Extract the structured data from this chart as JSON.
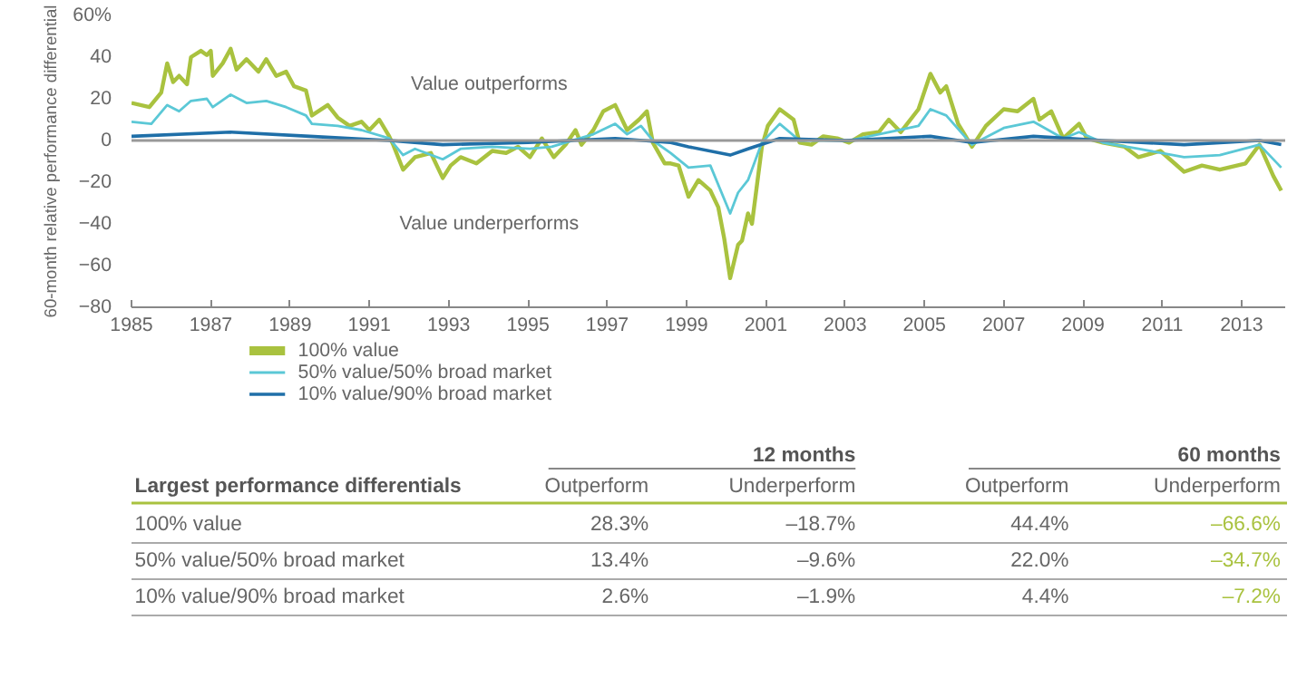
{
  "chart_data": [
    {
      "type": "line",
      "ylabel": "60-month relative performance differential",
      "xlim": [
        1985,
        2014.1
      ],
      "xticks": [
        1985,
        1987,
        1989,
        1991,
        1993,
        1995,
        1997,
        1999,
        2001,
        2003,
        2005,
        2007,
        2009,
        2011,
        2013
      ],
      "ylim": [
        -80,
        60
      ],
      "yticks": [
        -80,
        -60,
        -40,
        -20,
        0,
        20,
        40,
        {
          "value": 60,
          "label": "60%"
        }
      ],
      "grid": false,
      "legend": "bottom left",
      "ref_lines": [
        {
          "axis": "y",
          "value": 0,
          "color": "#999999"
        }
      ],
      "annotations": [
        "Value outperforms",
        "Value underperforms"
      ],
      "series": [
        {
          "name": "100% value",
          "color": "#a9c23f",
          "x": [
            1985.0,
            1985.45,
            1985.75,
            1985.9,
            1986.05,
            1986.2,
            1986.4,
            1986.5,
            1986.75,
            1986.9,
            1987.0,
            1987.05,
            1987.3,
            1987.5,
            1987.65,
            1987.9,
            1988.2,
            1988.4,
            1988.65,
            1988.9,
            1989.1,
            1989.4,
            1989.55,
            1989.95,
            1990.2,
            1990.5,
            1990.8,
            1991.0,
            1991.25,
            1991.5,
            1991.6,
            1991.85,
            1992.15,
            1992.55,
            1992.85,
            1993.05,
            1993.3,
            1993.7,
            1994.1,
            1994.45,
            1994.75,
            1995.05,
            1995.35,
            1995.65,
            1995.95,
            1996.2,
            1996.35,
            1996.65,
            1996.9,
            1997.2,
            1997.5,
            1997.8,
            1998.0,
            1998.15,
            1998.3,
            1998.45,
            1998.6,
            1998.8,
            1999.05,
            1999.3,
            1999.6,
            1999.8,
            1999.95,
            2000.1,
            2000.3,
            2000.4,
            2000.55,
            2000.65,
            2000.9,
            2001.05,
            2001.35,
            2001.7,
            2001.85,
            2002.15,
            2002.45,
            2002.8,
            2003.1,
            2003.45,
            2003.85,
            2004.1,
            2004.4,
            2004.85,
            2005.15,
            2005.4,
            2005.55,
            2005.85,
            2006.2,
            2006.55,
            2007.0,
            2007.35,
            2007.75,
            2007.9,
            2008.2,
            2008.5,
            2008.9,
            2009.1,
            2009.5,
            2010.05,
            2010.4,
            2010.95,
            2011.55,
            2012.0,
            2012.45,
            2013.1,
            2013.45,
            2013.8,
            2014.0
          ],
          "values": [
            18,
            16,
            23,
            37,
            28,
            31,
            27,
            40,
            43,
            41,
            43,
            31,
            37,
            44,
            34,
            39,
            33,
            39,
            31,
            33,
            26,
            24,
            12,
            17,
            11,
            7,
            9,
            5,
            10,
            2,
            -2,
            -14,
            -8,
            -6,
            -18,
            -12,
            -8,
            -11,
            -5,
            -6,
            -3,
            -8,
            1,
            -8,
            -2,
            5,
            -2,
            5,
            14,
            17,
            5,
            10,
            14,
            -1,
            -6,
            -11,
            -11,
            -12,
            -27,
            -19,
            -24,
            -32,
            -47,
            -66,
            -50,
            -48,
            -35,
            -40,
            -3,
            7,
            15,
            10,
            -1,
            -2,
            2,
            1,
            -1,
            3,
            4,
            10,
            4,
            15,
            32,
            23,
            26,
            8,
            -3,
            7,
            15,
            14,
            20,
            10,
            14,
            1,
            8,
            1,
            -1,
            -3,
            -8,
            -5,
            -15,
            -12,
            -14,
            -11,
            -2,
            -17,
            -24
          ]
        },
        {
          "name": "50% value/50% broad market",
          "color": "#5bc8d6",
          "x": [
            1985.0,
            1985.5,
            1985.9,
            1986.2,
            1986.5,
            1986.9,
            1987.05,
            1987.5,
            1987.9,
            1988.4,
            1988.9,
            1989.4,
            1989.55,
            1990.2,
            1990.8,
            1991.5,
            1991.85,
            1992.15,
            1992.85,
            1993.3,
            1994.1,
            1995.05,
            1995.6,
            1996.65,
            1997.2,
            1997.5,
            1997.85,
            1998.15,
            1998.6,
            1999.05,
            1999.6,
            2000.1,
            2000.3,
            2000.55,
            2000.9,
            2001.35,
            2001.85,
            2003.1,
            2004.1,
            2004.85,
            2005.15,
            2005.55,
            2006.2,
            2007.0,
            2007.75,
            2008.5,
            2008.9,
            2009.5,
            2010.4,
            2011.55,
            2012.45,
            2013.45,
            2014.0
          ],
          "values": [
            9,
            8,
            17,
            14,
            19,
            20,
            16,
            22,
            18,
            19,
            16,
            12,
            8,
            7,
            5,
            1,
            -7,
            -4,
            -9,
            -4,
            -3,
            -4,
            -3,
            3,
            8,
            3,
            7,
            0,
            -6,
            -13,
            -12,
            -35,
            -25,
            -19,
            -1,
            8,
            0,
            0,
            4,
            7,
            15,
            12,
            -2,
            6,
            9,
            1,
            4,
            -1,
            -4,
            -8,
            -7,
            -2,
            -13
          ]
        },
        {
          "name": "10% value/90% broad market",
          "color": "#1f6fa8",
          "x": [
            1985.0,
            1987.5,
            1989.5,
            1991.5,
            1992.85,
            1995.0,
            1997.2,
            1998.6,
            1999.05,
            2000.1,
            2000.55,
            2001.35,
            2003.0,
            2005.15,
            2006.2,
            2007.75,
            2009.5,
            2011.55,
            2013.45,
            2014.0
          ],
          "values": [
            2,
            4,
            2,
            0,
            -2,
            -1,
            1,
            -1,
            -3,
            -7,
            -4,
            1,
            0,
            2,
            -1,
            2,
            0,
            -2,
            0,
            -2
          ]
        }
      ]
    },
    {
      "type": "other",
      "title": "Largest performance differentials",
      "data_labels": true,
      "categories": [
        "100% value",
        "50% value/50% broad market",
        "10% value/90% broad market"
      ],
      "annotations": [
        "12 months",
        "60 months"
      ],
      "series": [
        {
          "name": "Outperform",
          "color": "#666666",
          "values": [
            28.3,
            13.4,
            2.6
          ],
          "value_labels": [
            "28.3%",
            "13.4%",
            "2.6%"
          ]
        },
        {
          "name": "Underperform",
          "color": "#666666",
          "values": [
            -18.7,
            -9.6,
            -1.9
          ],
          "value_labels": [
            "–18.7%",
            "–9.6%",
            "–1.9%"
          ]
        },
        {
          "name": "Outperform",
          "color": "#666666",
          "values": [
            44.4,
            22.0,
            4.4
          ],
          "value_labels": [
            "44.4%",
            "22.0%",
            "4.4%"
          ]
        },
        {
          "name": "Underperform",
          "colors": [
            "#a9c23f",
            "#a9c23f",
            "#a9c23f"
          ],
          "values": [
            -66.6,
            -34.7,
            -7.2
          ],
          "value_labels": [
            "–66.6%",
            "–34.7%",
            "–7.2%"
          ]
        }
      ]
    }
  ]
}
